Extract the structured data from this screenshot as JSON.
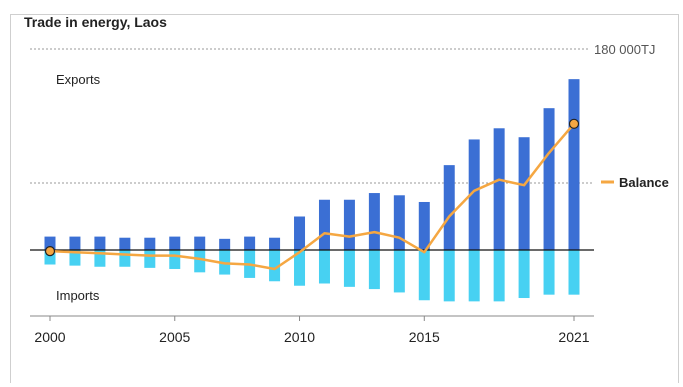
{
  "chart_data": {
    "type": "bar",
    "title": "Trade in energy, Laos",
    "x": [
      2000,
      2001,
      2002,
      2003,
      2004,
      2005,
      2006,
      2007,
      2008,
      2009,
      2010,
      2011,
      2012,
      2013,
      2014,
      2015,
      2016,
      2017,
      2018,
      2019,
      2020,
      2021
    ],
    "series": [
      {
        "name": "Exports",
        "kind": "bar",
        "color": "#3b6fd4",
        "values": [
          12000,
          12000,
          12000,
          11000,
          11000,
          12000,
          12000,
          10000,
          12000,
          11000,
          30000,
          45000,
          45000,
          51000,
          49000,
          43000,
          76000,
          99000,
          109000,
          101000,
          127000,
          153000
        ]
      },
      {
        "name": "Imports",
        "kind": "bar",
        "color": "#47d1f2",
        "values": [
          -13000,
          -14000,
          -15000,
          -15000,
          -16000,
          -17000,
          -20000,
          -22000,
          -25000,
          -28000,
          -32000,
          -30000,
          -33000,
          -35000,
          -38000,
          -45000,
          -46000,
          -46000,
          -46000,
          -43000,
          -40000,
          -40000
        ]
      },
      {
        "name": "Balance",
        "kind": "line",
        "color": "#f5a742",
        "values": [
          -1000,
          -2000,
          -3000,
          -4000,
          -5000,
          -5000,
          -8000,
          -12000,
          -13000,
          -17000,
          -2000,
          15000,
          12000,
          16000,
          11000,
          -2000,
          30000,
          53000,
          63000,
          58000,
          87000,
          113000
        ]
      }
    ],
    "markers": [
      {
        "x": 2000,
        "series": "Balance"
      },
      {
        "x": 2021,
        "series": "Balance"
      }
    ],
    "xticks": [
      "2000",
      "2005",
      "2010",
      "2015",
      "2021"
    ],
    "xtick_values": [
      2000,
      2005,
      2010,
      2015,
      2021
    ],
    "ylim": [
      -60000,
      180000
    ],
    "ymax_label": "180 000TJ",
    "gridlines": [
      180000,
      60000
    ],
    "annotations": {
      "top": "Exports",
      "bottom": "Imports"
    },
    "legend": {
      "label": "Balance",
      "placement": "right"
    }
  }
}
